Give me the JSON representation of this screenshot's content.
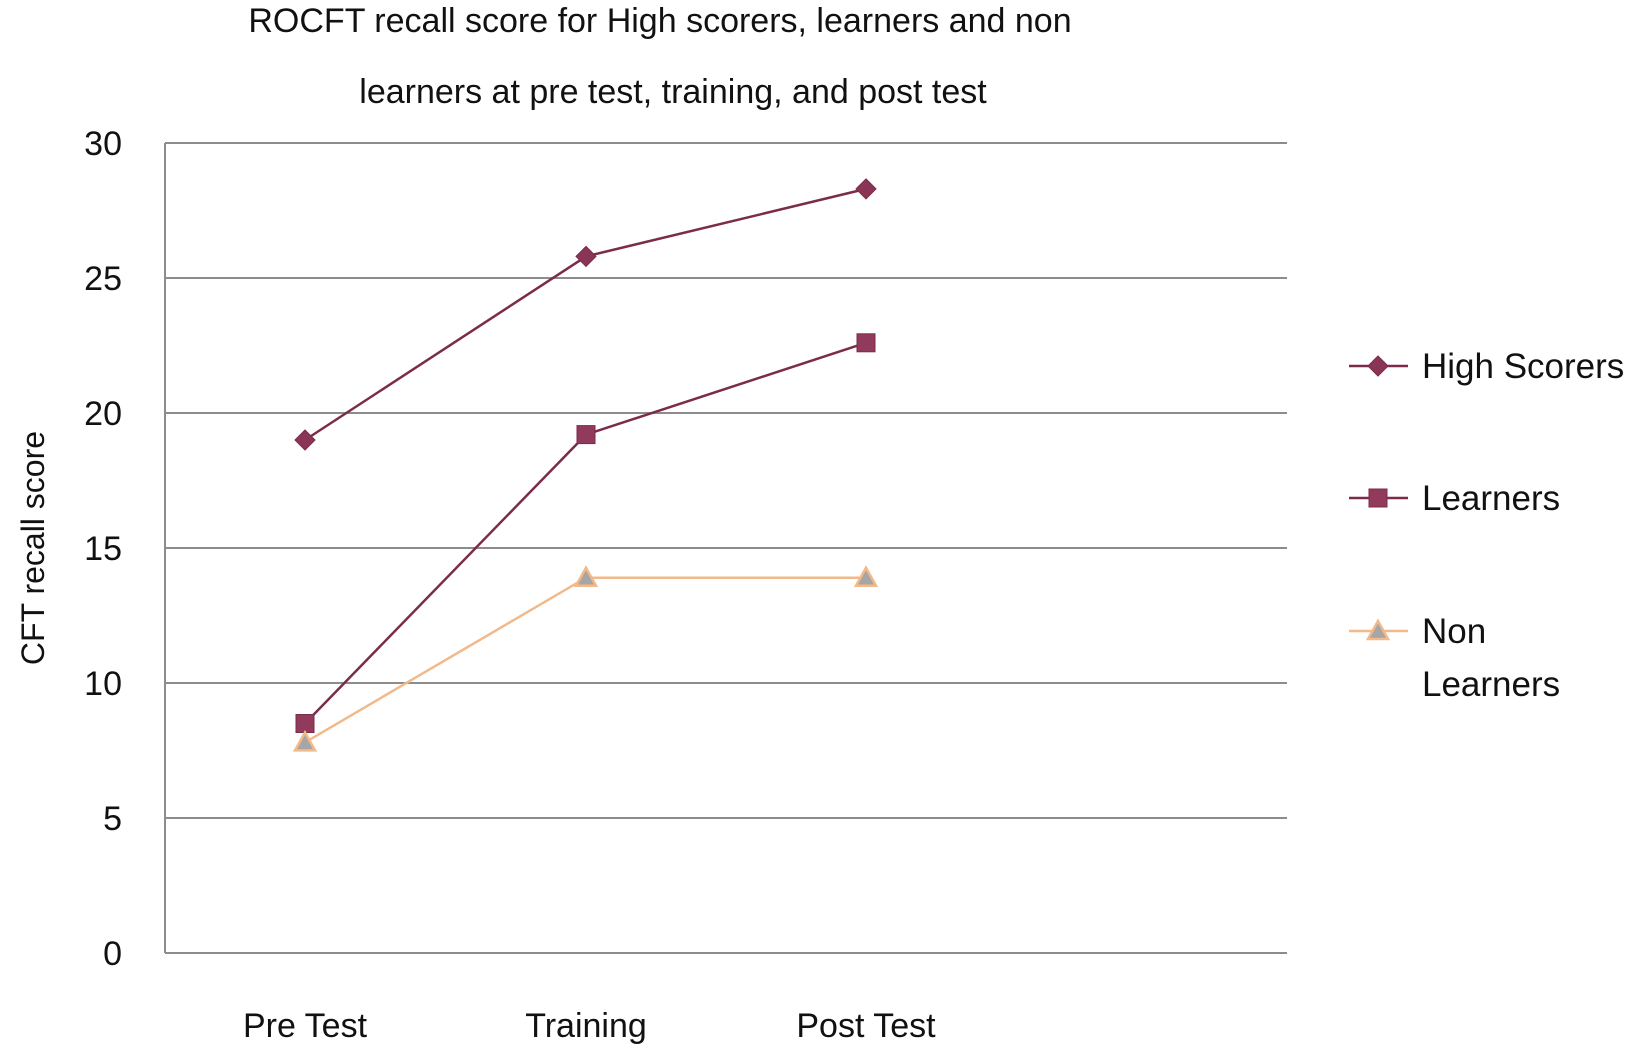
{
  "chart_data": {
    "type": "line",
    "title_lines": [
      "ROCFT recall score for High scorers, learners and non",
      "learners at pre test, training, and post test"
    ],
    "xlabel": "",
    "ylabel": "CFT recall score",
    "ylim": [
      0,
      30
    ],
    "y_ticks": [
      "0",
      "5",
      "10",
      "15",
      "20",
      "25",
      "30"
    ],
    "categories": [
      "Pre Test",
      "Training",
      "Post Test"
    ],
    "grid": true,
    "legend_position": "right",
    "series": [
      {
        "name": "High Scorers",
        "legend_lines": [
          "High Scorers"
        ],
        "values": [
          19.0,
          25.8,
          28.3
        ],
        "marker": "diamond",
        "line_color": "#7b2c4a",
        "marker_fill": "#8a3556",
        "marker_stroke": "#7b2c4a"
      },
      {
        "name": "Learners",
        "legend_lines": [
          "Learners"
        ],
        "values": [
          8.5,
          19.2,
          22.6
        ],
        "marker": "square",
        "line_color": "#7b2c4a",
        "marker_fill": "#913a5c",
        "marker_stroke": "#7b2c4a"
      },
      {
        "name": "Non Learners",
        "legend_lines": [
          "Non",
          "Learners"
        ],
        "values": [
          7.8,
          13.9,
          13.9
        ],
        "marker": "triangle",
        "line_color": "#f2b98b",
        "marker_fill": "#a8a5a5",
        "marker_stroke": "#f2b98b"
      }
    ]
  }
}
